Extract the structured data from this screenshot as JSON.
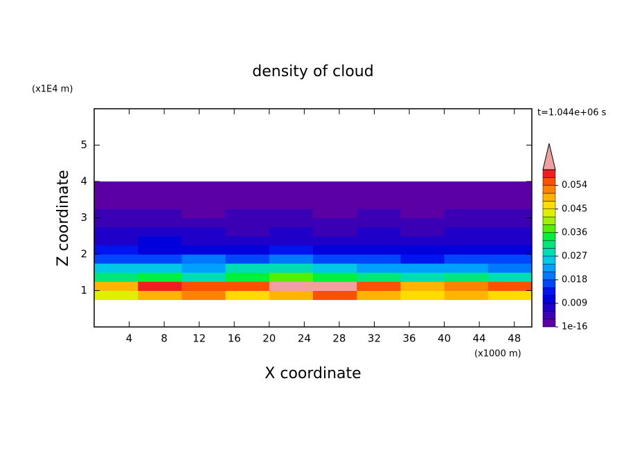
{
  "chart_data": {
    "type": "heatmap",
    "title": "density of cloud",
    "x_label": "X coordinate",
    "y_label": "Z coordinate",
    "x_unit": "(x1000 m)",
    "y_unit": "(x1E4 m)",
    "time_label": "t=1.044e+06 s",
    "xlim": [
      0,
      50
    ],
    "ylim": [
      0,
      6
    ],
    "xticks": [
      4,
      8,
      12,
      16,
      20,
      24,
      28,
      32,
      36,
      40,
      44,
      48
    ],
    "yticks": [
      1,
      2,
      3,
      4,
      5
    ],
    "x_edges": [
      0,
      5,
      10,
      15,
      20,
      25,
      30,
      35,
      40,
      45,
      50
    ],
    "y_edges": [
      0.75,
      1,
      1.25,
      1.5,
      1.75,
      2,
      2.25,
      2.5,
      2.75,
      3,
      3.25,
      3.5,
      3.75,
      4
    ],
    "values": [
      [
        0.045,
        0.05,
        0.052,
        0.048,
        0.05,
        0.055,
        0.051,
        0.046,
        0.049,
        0.047
      ],
      [
        0.05,
        0.058,
        0.055,
        0.057,
        0.062,
        0.061,
        0.056,
        0.05,
        0.053,
        0.055
      ],
      [
        0.033,
        0.036,
        0.03,
        0.034,
        0.038,
        0.035,
        0.031,
        0.029,
        0.032,
        0.03
      ],
      [
        0.025,
        0.027,
        0.024,
        0.028,
        0.029,
        0.026,
        0.023,
        0.022,
        0.024,
        0.021
      ],
      [
        0.017,
        0.018,
        0.019,
        0.017,
        0.02,
        0.018,
        0.016,
        0.015,
        0.017,
        0.016
      ],
      [
        0.013,
        0.012,
        0.011,
        0.012,
        0.013,
        0.012,
        0.011,
        0.01,
        0.012,
        0.011
      ],
      [
        0.009,
        0.01,
        0.008,
        0.009,
        0.009,
        0.008,
        0.009,
        0.008,
        0.009,
        0.008
      ],
      [
        0.008,
        0.007,
        0.007,
        0.006,
        0.007,
        0.006,
        0.007,
        0.006,
        0.007,
        0.007
      ],
      [
        0.006,
        0.006,
        0.005,
        0.006,
        0.005,
        0.005,
        0.006,
        0.005,
        0.006,
        0.005
      ],
      [
        0.004,
        0.004,
        0.003,
        0.004,
        0.004,
        0.003,
        0.004,
        0.003,
        0.004,
        0.004
      ],
      [
        0.002,
        0.002,
        0.002,
        0.002,
        0.001,
        0.001,
        0.002,
        0.001,
        0.002,
        0.002
      ],
      [
        0.001,
        0.001,
        0.001,
        0.001,
        0.001,
        0.001,
        0.001,
        0.001,
        0.001,
        0.001
      ],
      [
        0.0005,
        0.0005,
        0.0005,
        0.0005,
        0.0005,
        0.0005,
        0.0005,
        0.0005,
        0.0005,
        0.0005
      ]
    ],
    "levels": [
      1e-16,
      0.003,
      0.006,
      0.009,
      0.012,
      0.015,
      0.018,
      0.021,
      0.024,
      0.027,
      0.03,
      0.033,
      0.036,
      0.039,
      0.042,
      0.045,
      0.048,
      0.051,
      0.054,
      0.057,
      0.06
    ],
    "colorbar_ticks": [
      1e-16,
      0.009,
      0.018,
      0.027,
      0.036,
      0.045,
      0.054
    ],
    "colors": [
      "#5a00a5",
      "#3c00b4",
      "#1e00c8",
      "#0000dc",
      "#0014f0",
      "#0046ff",
      "#0078ff",
      "#00a0ff",
      "#00c8e6",
      "#00dcb4",
      "#00e678",
      "#00f03c",
      "#50f000",
      "#a0f000",
      "#dcf000",
      "#ffdc00",
      "#ffb400",
      "#ff8200",
      "#ff5000",
      "#f01e1e"
    ],
    "over_color": "#f0a0a0"
  }
}
